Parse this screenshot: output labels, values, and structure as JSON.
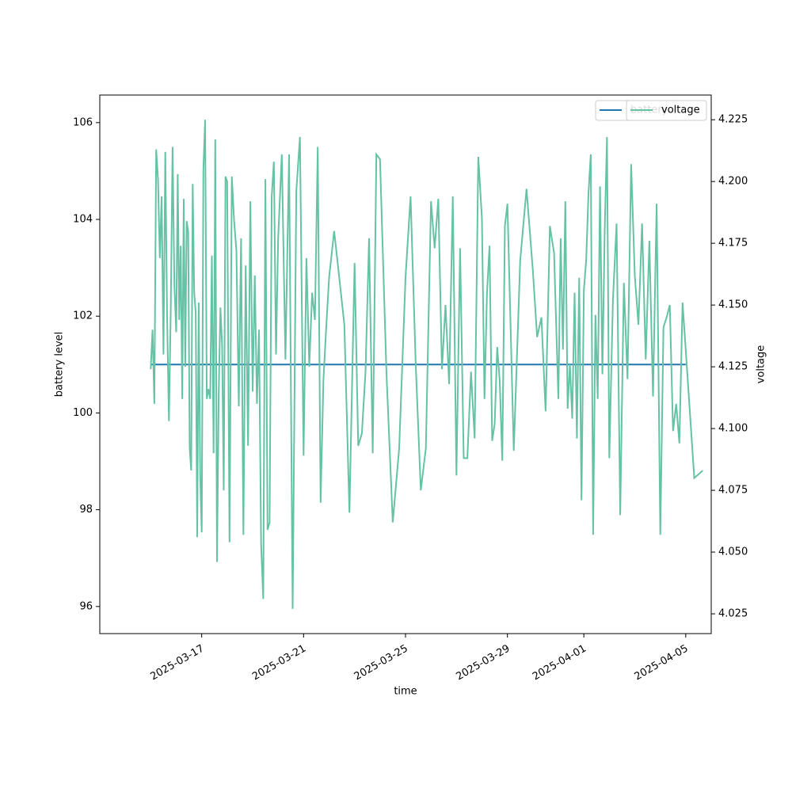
{
  "chart_data": {
    "type": "line",
    "xlabel": "time",
    "ylabel": "battery level",
    "y2label": "voltage",
    "xlim": [
      "2025-03-13",
      "2025-04-06"
    ],
    "xticks": [
      "2025-03-17",
      "2025-03-21",
      "2025-03-25",
      "2025-03-29",
      "2025-04-01",
      "2025-04-05"
    ],
    "ylim": [
      95.44,
      106.57
    ],
    "yticks": [
      96,
      98,
      100,
      102,
      104,
      106
    ],
    "y2lim": [
      4.017,
      4.235
    ],
    "y2ticks": [
      4.025,
      {
        "value": 4.05,
        "label": "4.050"
      },
      4.075,
      {
        "value": 4.1,
        "label": "4.100"
      },
      4.125,
      {
        "value": 4.15,
        "label": "4.150"
      },
      4.175,
      {
        "value": 4.2,
        "label": "4.200"
      },
      4.225
    ],
    "x": [
      "2025-03-15",
      "2025-03-15",
      "2025-03-15",
      "2025-03-15",
      "2025-03-15",
      "2025-03-15",
      "2025-03-15",
      "2025-03-15",
      "2025-03-15",
      "2025-03-15",
      "2025-03-15",
      "2025-03-15",
      "2025-03-15",
      "2025-03-15",
      "2025-03-16",
      "2025-03-16",
      "2025-03-16",
      "2025-03-16",
      "2025-03-16",
      "2025-03-16",
      "2025-03-16",
      "2025-03-16",
      "2025-03-16",
      "2025-03-16",
      "2025-03-16",
      "2025-03-16",
      "2025-03-16",
      "2025-03-16",
      "2025-03-16",
      "2025-03-16",
      "2025-03-16",
      "2025-03-17",
      "2025-03-17",
      "2025-03-17",
      "2025-03-17",
      "2025-03-17",
      "2025-03-17",
      "2025-03-17",
      "2025-03-17",
      "2025-03-17",
      "2025-03-17",
      "2025-03-17",
      "2025-03-17",
      "2025-03-17",
      "2025-03-17",
      "2025-03-17",
      "2025-03-18",
      "2025-03-18",
      "2025-03-18",
      "2025-03-18",
      "2025-03-18",
      "2025-03-18",
      "2025-03-18",
      "2025-03-18",
      "2025-03-18",
      "2025-03-18",
      "2025-03-18",
      "2025-03-19",
      "2025-03-19",
      "2025-03-19",
      "2025-03-19",
      "2025-03-19",
      "2025-03-19",
      "2025-03-19",
      "2025-03-19",
      "2025-03-19",
      "2025-03-19",
      "2025-03-19",
      "2025-03-19",
      "2025-03-20",
      "2025-03-20",
      "2025-03-20",
      "2025-03-20",
      "2025-03-20",
      "2025-03-20",
      "2025-03-20",
      "2025-03-21",
      "2025-03-21",
      "2025-03-21",
      "2025-03-21",
      "2025-03-21",
      "2025-03-21",
      "2025-03-21",
      "2025-03-21",
      "2025-03-21",
      "2025-03-22",
      "2025-03-22",
      "2025-03-22",
      "2025-03-22",
      "2025-03-22",
      "2025-03-23",
      "2025-03-23",
      "2025-03-23",
      "2025-03-23",
      "2025-03-23",
      "2025-03-23",
      "2025-03-23",
      "2025-03-24",
      "2025-03-24",
      "2025-03-24",
      "2025-03-24",
      "2025-03-25",
      "2025-03-25",
      "2025-03-25",
      "2025-03-25",
      "2025-03-25",
      "2025-03-26",
      "2025-03-26",
      "2025-03-26",
      "2025-03-26",
      "2025-03-26",
      "2025-03-26",
      "2025-03-26",
      "2025-03-27",
      "2025-03-27",
      "2025-03-27",
      "2025-03-27",
      "2025-03-27",
      "2025-03-27",
      "2025-03-27",
      "2025-03-28",
      "2025-03-28",
      "2025-03-28",
      "2025-03-28",
      "2025-03-28",
      "2025-03-28",
      "2025-03-28",
      "2025-03-28",
      "2025-03-28",
      "2025-03-28",
      "2025-03-29",
      "2025-03-29",
      "2025-03-29",
      "2025-03-29",
      "2025-03-30",
      "2025-03-30",
      "2025-03-30",
      "2025-03-30",
      "2025-03-30",
      "2025-03-30",
      "2025-03-31",
      "2025-03-31",
      "2025-03-31",
      "2025-03-31",
      "2025-03-31",
      "2025-03-31",
      "2025-03-31",
      "2025-03-31",
      "2025-03-31",
      "2025-03-31",
      "2025-03-31",
      "2025-04-01",
      "2025-04-01",
      "2025-04-01",
      "2025-04-01",
      "2025-04-01",
      "2025-04-01",
      "2025-04-01",
      "2025-04-01",
      "2025-04-01",
      "2025-04-01",
      "2025-04-01",
      "2025-04-02",
      "2025-04-02",
      "2025-04-02",
      "2025-04-02",
      "2025-04-02",
      "2025-04-02",
      "2025-04-02",
      "2025-04-03",
      "2025-04-03",
      "2025-04-03",
      "2025-04-03",
      "2025-04-03",
      "2025-04-03",
      "2025-04-03",
      "2025-04-04",
      "2025-04-04",
      "2025-04-04",
      "2025-04-04",
      "2025-04-04",
      "2025-04-04",
      "2025-04-04",
      "2025-04-04",
      "2025-04-05",
      "2025-04-05",
      "2025-04-05"
    ],
    "series": [
      {
        "name": "battery",
        "color": "#1f77b4",
        "x": [
          "2025-03-15",
          "2025-04-05"
        ],
        "values": [
          101,
          101
        ]
      },
      {
        "name": "voltage",
        "color": "#66c2a5",
        "axis": "y2",
        "values": [
          4.124,
          4.14,
          4.11,
          4.213,
          4.201,
          4.169,
          4.194,
          4.13,
          4.212,
          4.145,
          4.103,
          4.148,
          4.214,
          4.158,
          4.139,
          4.203,
          4.144,
          4.174,
          4.112,
          4.193,
          4.125,
          4.184,
          4.18,
          4.092,
          4.083,
          4.199,
          4.155,
          4.147,
          4.056,
          4.151,
          4.081,
          4.058,
          4.205,
          4.225,
          4.112,
          4.116,
          4.112,
          4.17,
          4.09,
          4.217,
          4.046,
          4.113,
          4.149,
          4.134,
          4.075,
          4.202,
          4.2,
          4.054,
          4.202,
          4.184,
          4.172,
          4.109,
          4.177,
          4.057,
          4.166,
          4.093,
          4.192,
          4.115,
          4.162,
          4.11,
          4.14,
          4.053,
          4.031,
          4.201,
          4.059,
          4.062,
          4.194,
          4.208,
          4.13,
          4.177,
          4.211,
          4.128,
          4.211,
          4.027,
          4.196,
          4.218,
          4.089,
          4.169,
          4.125,
          4.155,
          4.144,
          4.214,
          4.07,
          4.12,
          4.141,
          4.161,
          4.18,
          4.161,
          4.142,
          4.066,
          4.167,
          4.093,
          4.098,
          4.123,
          4.177,
          4.09,
          4.211,
          4.209,
          4.123,
          4.062,
          4.092,
          4.161,
          4.194,
          4.126,
          4.075,
          4.092,
          4.192,
          4.173,
          4.193,
          4.124,
          4.15,
          4.118,
          4.194,
          4.081,
          4.173,
          4.088,
          4.088,
          4.123,
          4.096,
          4.21,
          4.185,
          4.112,
          4.155,
          4.174,
          4.095,
          4.102,
          4.133,
          4.119,
          4.087,
          4.182,
          4.191,
          4.091,
          4.168,
          4.197,
          4.164,
          4.137,
          4.145,
          4.107,
          4.182,
          4.171,
          4.112,
          4.177,
          4.132,
          4.192,
          4.108,
          4.126,
          4.104,
          4.155,
          4.096,
          4.161,
          4.071,
          4.156,
          4.168,
          4.195,
          4.211,
          4.057,
          4.146,
          4.112,
          4.198,
          4.122,
          4.18,
          4.218,
          4.088,
          4.152,
          4.183,
          4.065,
          4.159,
          4.12,
          4.207,
          4.162,
          4.142,
          4.183,
          4.128,
          4.176,
          4.113,
          4.191,
          4.057,
          4.141,
          4.145,
          4.15,
          4.099,
          4.11,
          4.094,
          4.151,
          4.132,
          4.08,
          4.083
        ]
      }
    ]
  }
}
